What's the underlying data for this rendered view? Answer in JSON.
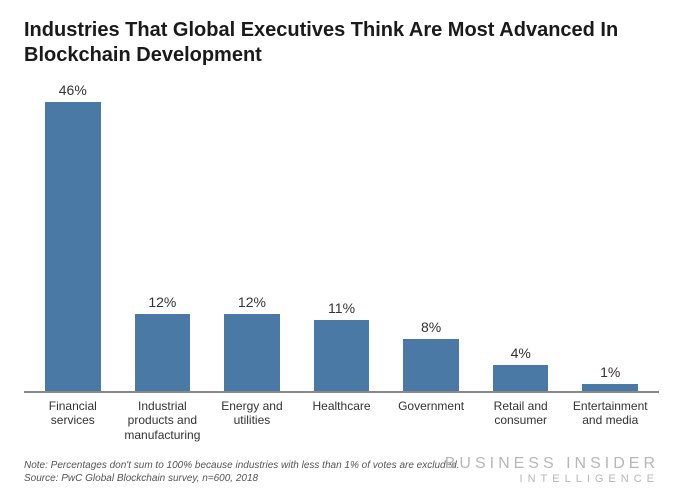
{
  "chart": {
    "type": "bar",
    "title": "Industries That Global Executives Think Are Most Advanced In Blockchain Development",
    "title_fontsize": 20,
    "title_color": "#1a1a1a",
    "categories": [
      "Financial services",
      "Industrial products and manufacturing",
      "Energy and utilities",
      "Healthcare",
      "Government",
      "Retail and consumer",
      "Entertainment and media"
    ],
    "values": [
      46,
      12,
      12,
      11,
      8,
      4,
      1
    ],
    "value_labels": [
      "46%",
      "12%",
      "12%",
      "11%",
      "8%",
      "4%",
      "1%"
    ],
    "bar_color": "#4a79a6",
    "bar_width": 0.62,
    "ylim": [
      0,
      48
    ],
    "show_y_axis": false,
    "show_grid": false,
    "axis_line_color": "#888888",
    "background_color": "#ffffff",
    "value_label_fontsize": 14,
    "value_label_color": "#333333",
    "category_label_fontsize": 12,
    "category_label_color": "#333333"
  },
  "footer": {
    "note": "Note: Percentages don't sum to 100% because industries with less than 1% of votes are excluded.",
    "source": "Source: PwC Global Blockchain survey, n=600, 2018",
    "note_fontsize": 10,
    "note_color": "#555555"
  },
  "brand": {
    "line1": "BUSINESS",
    "line2": "INSIDER",
    "line3": "INTELLIGENCE",
    "color": "#b7b7b7"
  }
}
